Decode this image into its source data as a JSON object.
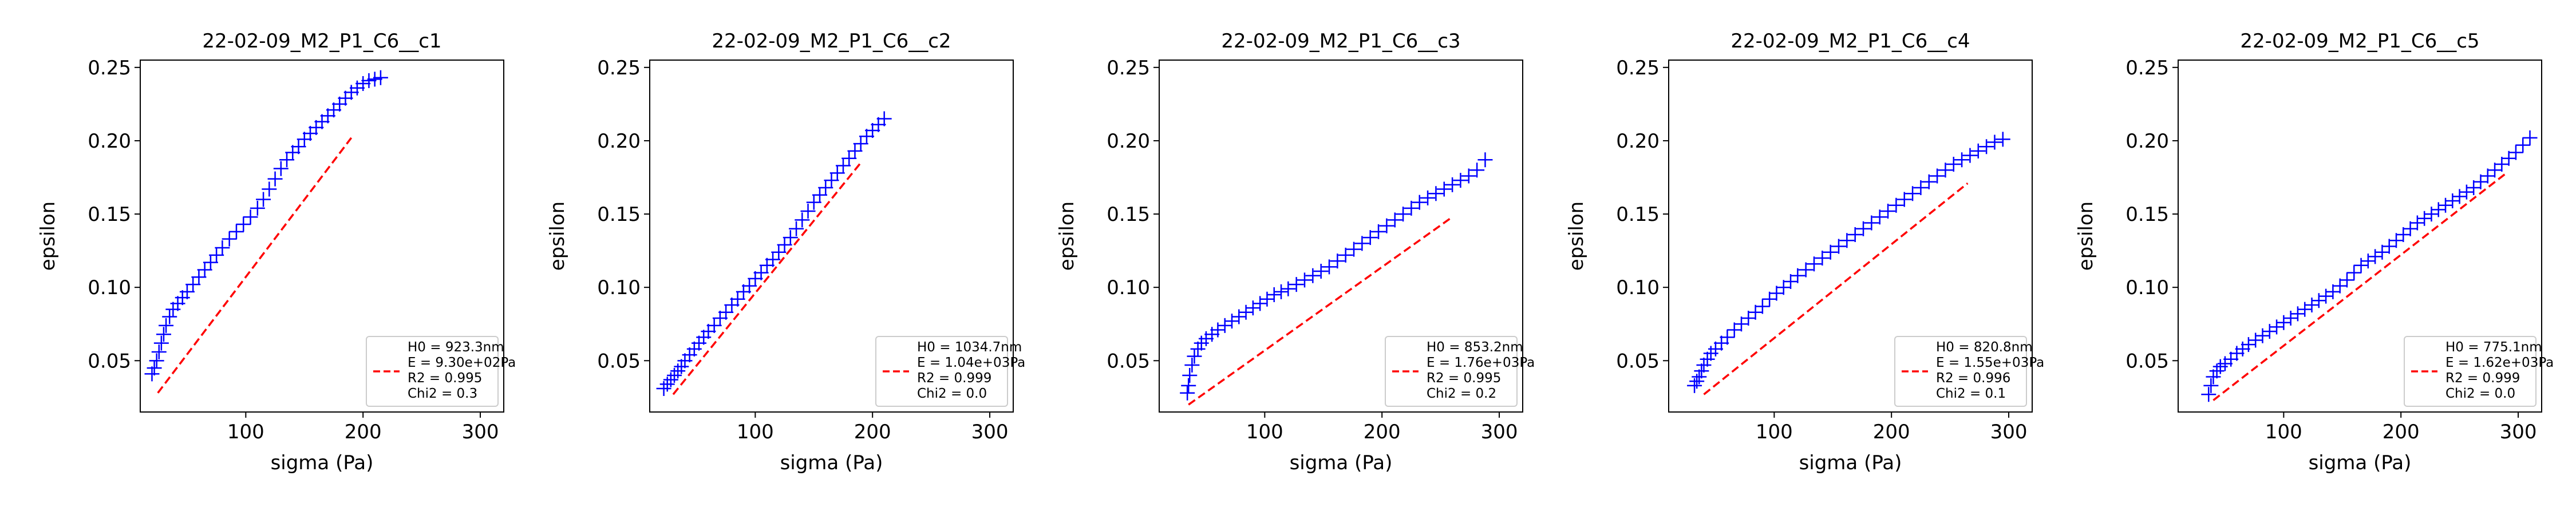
{
  "chart_data": [
    {
      "type": "scatter",
      "title": "22-02-09_M2_P1_C6__c1",
      "xlabel": "sigma (Pa)",
      "ylabel": "epsilon",
      "xlim": [
        10,
        320
      ],
      "ylim": [
        0.015,
        0.255
      ],
      "xticks": [
        100,
        200,
        300
      ],
      "yticks": [
        0.05,
        0.1,
        0.15,
        0.2,
        0.25
      ],
      "legend": {
        "placement": "lower-right",
        "lines": [
          "H0 = 923.3nm",
          "E = 9.30e+02Pa",
          "R2 = 0.995",
          "Chi2 = 0.3"
        ]
      },
      "fit_line": {
        "x": [
          25,
          190
        ],
        "y": [
          0.028,
          0.202
        ]
      },
      "series": [
        {
          "marker": "+",
          "color": "#0000ff",
          "x": [
            20,
            22,
            24,
            26,
            28,
            30,
            32,
            35,
            38,
            42,
            46,
            50,
            55,
            60,
            65,
            70,
            75,
            80,
            86,
            92,
            98,
            104,
            110,
            115,
            120,
            125,
            130,
            135,
            140,
            145,
            150,
            155,
            160,
            165,
            170,
            175,
            180,
            185,
            190,
            195,
            200,
            205,
            210,
            215
          ],
          "y": [
            0.041,
            0.045,
            0.05,
            0.056,
            0.062,
            0.068,
            0.074,
            0.08,
            0.085,
            0.089,
            0.093,
            0.097,
            0.102,
            0.107,
            0.112,
            0.117,
            0.122,
            0.127,
            0.133,
            0.138,
            0.143,
            0.148,
            0.154,
            0.16,
            0.167,
            0.174,
            0.181,
            0.187,
            0.192,
            0.196,
            0.201,
            0.205,
            0.209,
            0.213,
            0.217,
            0.221,
            0.225,
            0.229,
            0.233,
            0.236,
            0.239,
            0.241,
            0.242,
            0.243
          ]
        }
      ]
    },
    {
      "type": "scatter",
      "title": "22-02-09_M2_P1_C6__c2",
      "xlabel": "sigma (Pa)",
      "ylabel": "epsilon",
      "xlim": [
        10,
        320
      ],
      "ylim": [
        0.015,
        0.255
      ],
      "xticks": [
        100,
        200,
        300
      ],
      "yticks": [
        0.05,
        0.1,
        0.15,
        0.2,
        0.25
      ],
      "legend": {
        "placement": "lower-right",
        "lines": [
          "H0 = 1034.7nm",
          "E = 1.04e+03Pa",
          "R2 = 0.999",
          "Chi2 = 0.0"
        ]
      },
      "fit_line": {
        "x": [
          30,
          190
        ],
        "y": [
          0.027,
          0.185
        ]
      },
      "series": [
        {
          "marker": "+",
          "color": "#0000ff",
          "x": [
            22,
            25,
            28,
            31,
            34,
            37,
            40,
            44,
            48,
            52,
            56,
            60,
            65,
            70,
            75,
            80,
            85,
            90,
            95,
            100,
            105,
            110,
            115,
            120,
            125,
            130,
            135,
            140,
            145,
            150,
            155,
            160,
            165,
            170,
            175,
            180,
            185,
            190,
            195,
            200,
            205,
            210
          ],
          "y": [
            0.031,
            0.034,
            0.037,
            0.04,
            0.043,
            0.046,
            0.05,
            0.054,
            0.058,
            0.062,
            0.066,
            0.07,
            0.074,
            0.079,
            0.083,
            0.088,
            0.092,
            0.097,
            0.101,
            0.106,
            0.11,
            0.115,
            0.119,
            0.124,
            0.129,
            0.134,
            0.14,
            0.146,
            0.152,
            0.158,
            0.163,
            0.168,
            0.173,
            0.178,
            0.183,
            0.188,
            0.193,
            0.198,
            0.203,
            0.207,
            0.211,
            0.215
          ]
        }
      ]
    },
    {
      "type": "scatter",
      "title": "22-02-09_M2_P1_C6__c3",
      "xlabel": "sigma (Pa)",
      "ylabel": "epsilon",
      "xlim": [
        10,
        320
      ],
      "ylim": [
        0.015,
        0.255
      ],
      "xticks": [
        100,
        200,
        300
      ],
      "yticks": [
        0.05,
        0.1,
        0.15,
        0.2,
        0.25
      ],
      "legend": {
        "placement": "lower-right",
        "lines": [
          "H0 = 853.2nm",
          "E = 1.76e+03Pa",
          "R2 = 0.995",
          "Chi2 = 0.2"
        ]
      },
      "fit_line": {
        "x": [
          35,
          260
        ],
        "y": [
          0.02,
          0.148
        ]
      },
      "series": [
        {
          "marker": "+",
          "color": "#0000ff",
          "x": [
            34,
            35,
            36,
            38,
            40,
            43,
            46,
            50,
            55,
            60,
            66,
            72,
            78,
            84,
            90,
            96,
            102,
            108,
            114,
            120,
            127,
            134,
            141,
            148,
            155,
            162,
            169,
            176,
            183,
            190,
            197,
            204,
            211,
            218,
            225,
            232,
            239,
            246,
            253,
            260,
            267,
            274,
            281,
            288
          ],
          "y": [
            0.028,
            0.033,
            0.04,
            0.047,
            0.053,
            0.058,
            0.062,
            0.065,
            0.068,
            0.071,
            0.074,
            0.077,
            0.08,
            0.083,
            0.086,
            0.089,
            0.092,
            0.095,
            0.097,
            0.099,
            0.102,
            0.105,
            0.108,
            0.111,
            0.114,
            0.118,
            0.122,
            0.126,
            0.13,
            0.134,
            0.138,
            0.142,
            0.146,
            0.15,
            0.154,
            0.158,
            0.161,
            0.164,
            0.167,
            0.17,
            0.173,
            0.176,
            0.18,
            0.187
          ]
        }
      ]
    },
    {
      "type": "scatter",
      "title": "22-02-09_M2_P1_C6__c4",
      "xlabel": "sigma (Pa)",
      "ylabel": "epsilon",
      "xlim": [
        10,
        320
      ],
      "ylim": [
        0.015,
        0.255
      ],
      "xticks": [
        100,
        200,
        300
      ],
      "yticks": [
        0.05,
        0.1,
        0.15,
        0.2,
        0.25
      ],
      "legend": {
        "placement": "lower-right",
        "lines": [
          "H0 = 820.8nm",
          "E = 1.55e+03Pa",
          "R2 = 0.996",
          "Chi2 = 0.1"
        ]
      },
      "fit_line": {
        "x": [
          40,
          265
        ],
        "y": [
          0.027,
          0.171
        ]
      },
      "series": [
        {
          "marker": "+",
          "color": "#0000ff",
          "x": [
            32,
            34,
            36,
            38,
            40,
            43,
            46,
            50,
            55,
            60,
            66,
            72,
            78,
            84,
            90,
            96,
            102,
            108,
            114,
            120,
            127,
            134,
            141,
            148,
            155,
            162,
            169,
            176,
            183,
            190,
            197,
            204,
            211,
            218,
            225,
            232,
            239,
            246,
            253,
            260,
            267,
            274,
            281,
            288,
            295
          ],
          "y": [
            0.033,
            0.036,
            0.039,
            0.043,
            0.047,
            0.051,
            0.055,
            0.058,
            0.062,
            0.066,
            0.071,
            0.075,
            0.079,
            0.083,
            0.087,
            0.092,
            0.096,
            0.1,
            0.104,
            0.108,
            0.112,
            0.116,
            0.12,
            0.124,
            0.128,
            0.132,
            0.136,
            0.14,
            0.144,
            0.148,
            0.152,
            0.156,
            0.16,
            0.164,
            0.168,
            0.172,
            0.176,
            0.18,
            0.184,
            0.187,
            0.19,
            0.193,
            0.196,
            0.199,
            0.201
          ]
        }
      ]
    },
    {
      "type": "scatter",
      "title": "22-02-09_M2_P1_C6__c5",
      "xlabel": "sigma (Pa)",
      "ylabel": "epsilon",
      "xlim": [
        10,
        320
      ],
      "ylim": [
        0.015,
        0.255
      ],
      "xticks": [
        100,
        200,
        300
      ],
      "yticks": [
        0.05,
        0.1,
        0.15,
        0.2,
        0.25
      ],
      "legend": {
        "placement": "lower-right",
        "lines": [
          "H0 = 775.1nm",
          "E = 1.62e+03Pa",
          "R2 = 0.999",
          "Chi2 = 0.0"
        ]
      },
      "fit_line": {
        "x": [
          40,
          290
        ],
        "y": [
          0.023,
          0.178
        ]
      },
      "series": [
        {
          "marker": "+",
          "color": "#0000ff",
          "x": [
            36,
            38,
            40,
            43,
            46,
            50,
            55,
            60,
            65,
            70,
            76,
            82,
            88,
            94,
            100,
            106,
            112,
            118,
            124,
            130,
            136,
            142,
            148,
            154,
            160,
            166,
            172,
            178,
            184,
            190,
            196,
            202,
            208,
            214,
            220,
            226,
            232,
            238,
            244,
            250,
            256,
            262,
            268,
            274,
            280,
            286,
            292,
            298,
            304,
            310
          ],
          "y": [
            0.027,
            0.033,
            0.039,
            0.043,
            0.046,
            0.048,
            0.051,
            0.055,
            0.058,
            0.061,
            0.064,
            0.067,
            0.07,
            0.073,
            0.076,
            0.079,
            0.082,
            0.085,
            0.088,
            0.091,
            0.094,
            0.097,
            0.101,
            0.105,
            0.11,
            0.115,
            0.118,
            0.121,
            0.124,
            0.128,
            0.132,
            0.136,
            0.14,
            0.144,
            0.147,
            0.15,
            0.153,
            0.156,
            0.159,
            0.162,
            0.165,
            0.168,
            0.172,
            0.176,
            0.18,
            0.184,
            0.188,
            0.192,
            0.197,
            0.202
          ]
        }
      ]
    }
  ]
}
